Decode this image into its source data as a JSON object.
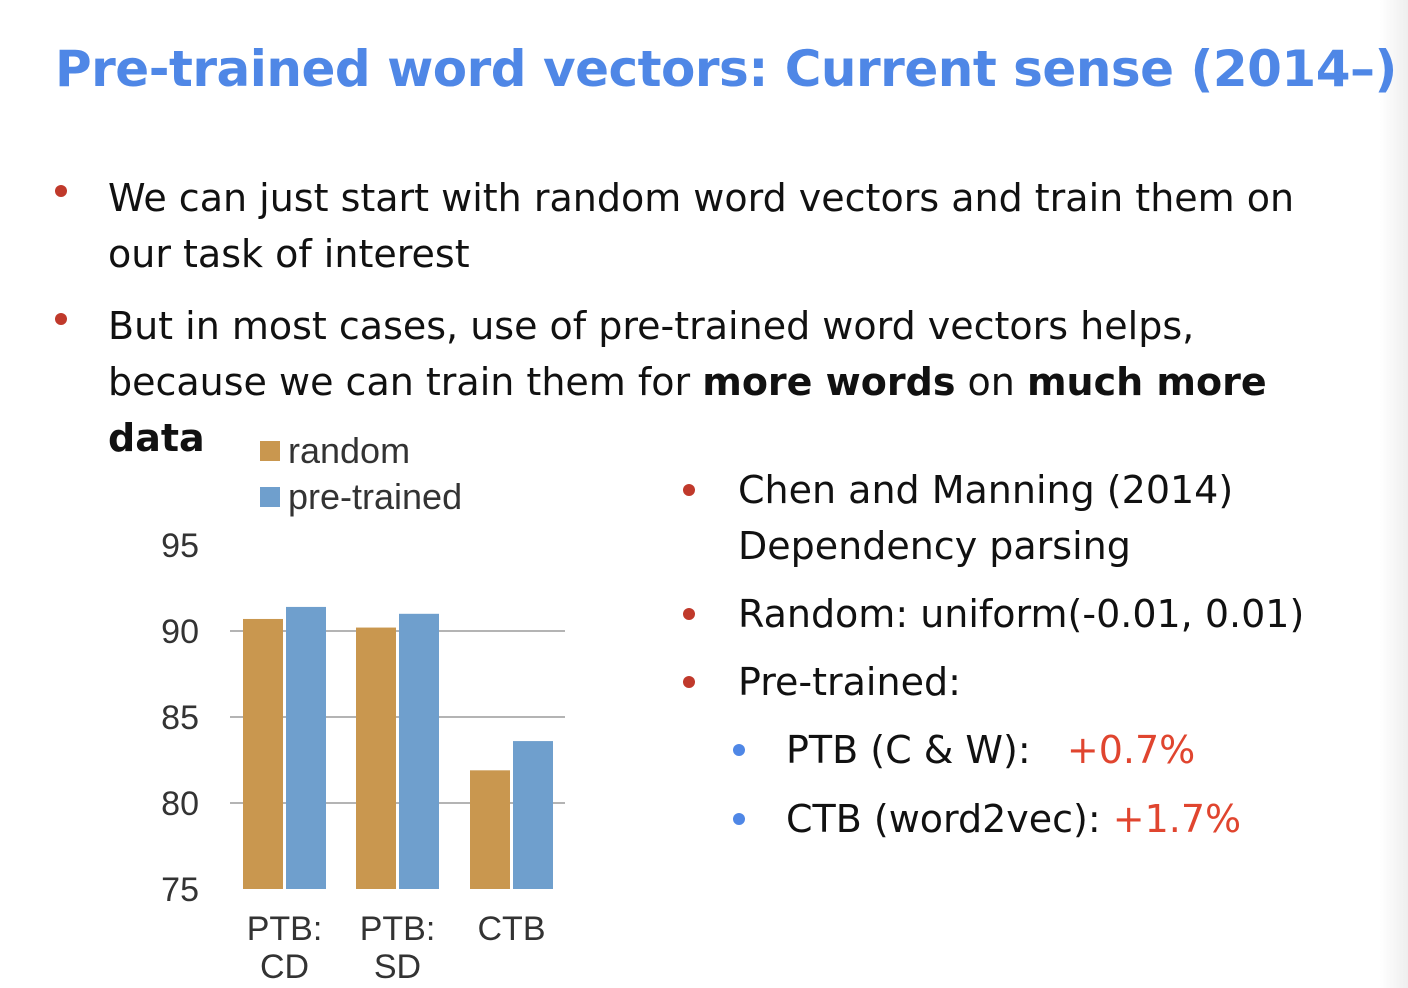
{
  "slide": {
    "title": "Pre-trained word vectors: Current sense (2014–)",
    "bullets": [
      {
        "text": "We can just start with random word vectors and train them on our task of interest"
      },
      {
        "text_a": "But in most cases, use of pre-trained word vectors helps, because we can train them for ",
        "bold_a": "more words",
        "text_b": " on ",
        "bold_b": "much more data"
      }
    ],
    "side": {
      "item1_line1": "Chen and Manning (2014)",
      "item1_line2": "Dependency parsing",
      "item2": "Random:  uniform(-0.01, 0.01)",
      "item3": "Pre-trained:",
      "sub1_label": "PTB (C & W):",
      "sub1_value": "+0.7%",
      "sub2_label": "CTB (word2vec):",
      "sub2_value": "+1.7%"
    }
  },
  "colors": {
    "title": "#4f87e6",
    "bullet": "#c0392b",
    "sub_bullet": "#4f87e6",
    "highlight": "#e0452f",
    "random": "#c9974f",
    "pretrained": "#6f9fcd",
    "grid": "#888888"
  },
  "chart_data": {
    "type": "bar",
    "categories": [
      [
        "PTB:",
        "CD"
      ],
      [
        "PTB:",
        "SD"
      ],
      [
        "CTB"
      ]
    ],
    "series": [
      {
        "name": "random",
        "values": [
          90.7,
          90.2,
          81.9
        ]
      },
      {
        "name": "pre-trained",
        "values": [
          91.4,
          91.0,
          83.6
        ]
      }
    ],
    "ylim": [
      75,
      95
    ],
    "yticks": [
      95,
      90,
      85,
      80,
      75
    ],
    "grid": true,
    "legend": "top-left",
    "title": "",
    "xlabel": "",
    "ylabel": ""
  }
}
